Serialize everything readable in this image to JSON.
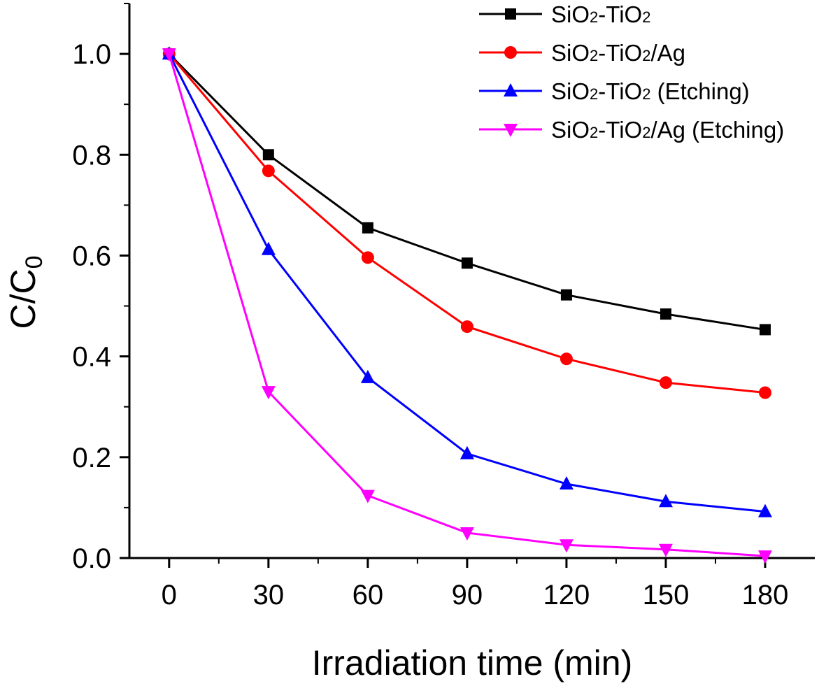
{
  "chart_data": {
    "type": "line",
    "xlabel": "Irradiation time (min)",
    "ylabel": {
      "main": "C/C",
      "sub": "0"
    },
    "xlim": [
      -12,
      195
    ],
    "ylim": [
      0,
      1.1
    ],
    "x_ticks": [
      0,
      30,
      60,
      90,
      120,
      150,
      180
    ],
    "x_tick_labels": [
      "0",
      "30",
      "60",
      "90",
      "120",
      "150",
      "180"
    ],
    "y_ticks": [
      0.0,
      0.2,
      0.4,
      0.6,
      0.8,
      1.0
    ],
    "y_tick_labels": [
      "0.0",
      "0.2",
      "0.4",
      "0.6",
      "0.8",
      "1.0"
    ],
    "x": [
      0,
      30,
      60,
      90,
      120,
      150,
      180
    ],
    "legend_position": "top-right",
    "grid": false,
    "series": [
      {
        "name": "SiO2-TiO2",
        "legend_parts": [
          "SiO",
          "2",
          "-TiO",
          "2",
          ""
        ],
        "marker": "square",
        "color": "#000000",
        "values": [
          1.0,
          0.8,
          0.655,
          0.585,
          0.522,
          0.484,
          0.453
        ]
      },
      {
        "name": "SiO2-TiO2/Ag",
        "legend_parts": [
          "SiO",
          "2",
          "-TiO",
          "2",
          "/Ag"
        ],
        "marker": "circle",
        "color": "#ff0000",
        "values": [
          1.0,
          0.768,
          0.596,
          0.459,
          0.395,
          0.348,
          0.328
        ]
      },
      {
        "name": "SiO2-TiO2 (Etching)",
        "legend_parts": [
          "SiO",
          "2",
          "-TiO",
          "2",
          " (Etching)"
        ],
        "marker": "triangle-up",
        "color": "#0000ff",
        "values": [
          1.0,
          0.612,
          0.358,
          0.207,
          0.147,
          0.112,
          0.092
        ]
      },
      {
        "name": "SiO2-TiO2/Ag (Etching)",
        "legend_parts": [
          "SiO",
          "2",
          "-TiO",
          "2",
          "/Ag (Etching)"
        ],
        "marker": "triangle-down",
        "color": "#ff00ff",
        "values": [
          1.0,
          0.33,
          0.124,
          0.05,
          0.026,
          0.017,
          0.004
        ]
      }
    ]
  }
}
